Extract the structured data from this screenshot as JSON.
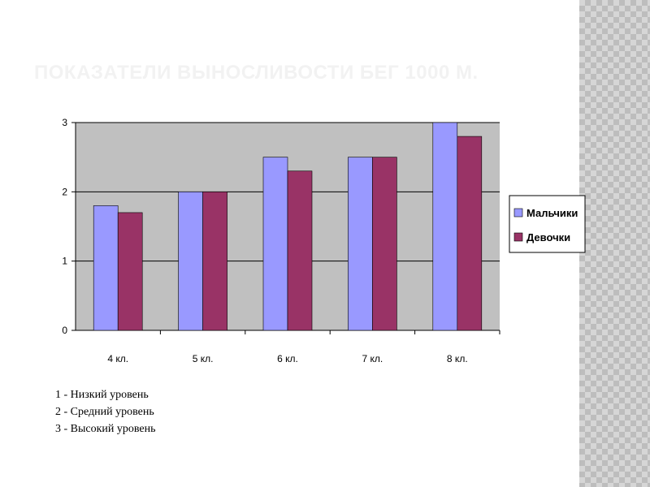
{
  "slide": {
    "title": "ПОКАЗАТЕЛИ ВЫНОСЛИВОСТИ БЕГ 1000 М."
  },
  "chart_data": {
    "type": "bar",
    "title": "",
    "xlabel": "",
    "ylabel": "",
    "categories": [
      "4 кл.",
      "5 кл.",
      "6 кл.",
      "7 кл.",
      "8 кл."
    ],
    "series": [
      {
        "name": "Мальчики",
        "color": "#9999ff",
        "values": [
          1.8,
          2.0,
          2.5,
          2.5,
          3.0
        ]
      },
      {
        "name": "Девочки",
        "color": "#993366",
        "values": [
          1.7,
          2.0,
          2.3,
          2.5,
          2.8
        ]
      }
    ],
    "ylim": [
      0,
      3
    ],
    "yticks": [
      0,
      1,
      2,
      3
    ],
    "grid": true,
    "plot_background": "#c0c0c0",
    "legend_position": "right"
  },
  "notes": [
    "1 - Низкий уровень",
    "2 - Средний уровень",
    "3 - Высокий уровень"
  ]
}
